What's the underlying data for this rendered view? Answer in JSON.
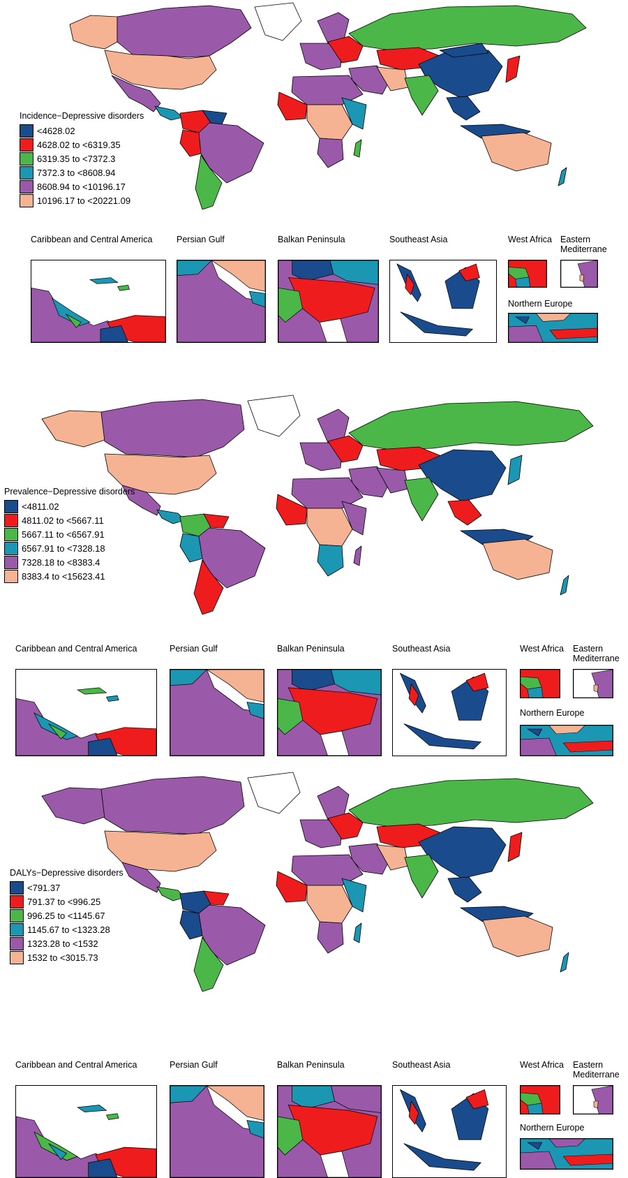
{
  "colors": {
    "c1": "#1a4b8c",
    "c2": "#ee1c1c",
    "c3": "#4bb749",
    "c4": "#1b96b3",
    "c5": "#9b5aa9",
    "c6": "#f6b394",
    "border": "#000000"
  },
  "inset_labels": {
    "caribbean": "Caribbean and Central America",
    "persian_gulf": "Persian Gulf",
    "balkan": "Balkan Peninsula",
    "southeast_asia": "Southeast Asia",
    "west_africa": "West Africa",
    "eastern_med_1": "Eastern",
    "eastern_med_2": "Mediterrane",
    "northern_europe": "Northern Europe"
  },
  "maps": [
    {
      "legend_title": "Incidence−Depressive disorders",
      "legend": [
        "<4628.02",
        "4628.02 to <6319.35",
        "6319.35 to <7372.3",
        "7372.3 to <8608.94",
        "8608.94 to <10196.17",
        "10196.17 to <20221.09"
      ]
    },
    {
      "legend_title": "Prevalence−Depressive disorders",
      "legend": [
        "<4811.02",
        "4811.02 to <5667.11",
        "5667.11 to <6567.91",
        "6567.91 to <7328.18",
        "7328.18 to <8383.4",
        "8383.4 to <15623.41"
      ]
    },
    {
      "legend_title": "DALYs−Depressive disorders",
      "legend": [
        "<791.37",
        "791.37 to <996.25",
        "996.25 to <1145.67",
        "1145.67 to <1323.28",
        "1323.28 to <1532",
        "1532 to <3015.73"
      ]
    }
  ]
}
